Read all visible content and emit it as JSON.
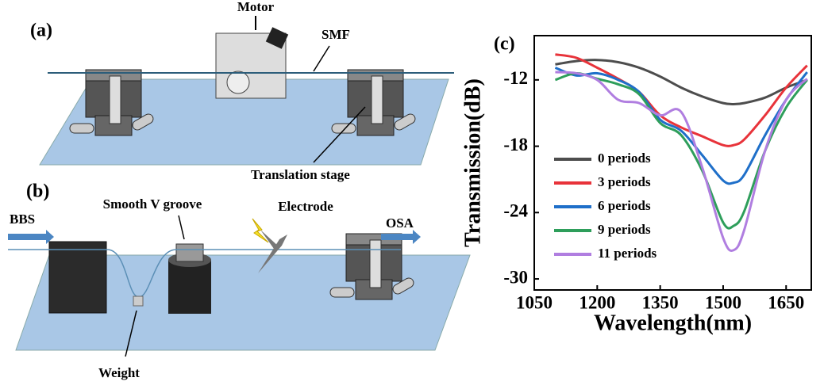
{
  "figure": {
    "a": {
      "label": "(a)",
      "motor": "Motor",
      "fiber": "SMF",
      "stage": "Translation stage"
    },
    "b": {
      "label": "(b)",
      "source": "BBS",
      "groove": "Smooth V groove",
      "electrode": "Electrode",
      "analyzer": "OSA",
      "weight": "Weight"
    },
    "c": {
      "label": "(c)"
    }
  },
  "chart_data": {
    "type": "line",
    "x_label": "Wavelength(nm)",
    "y_label": "Transmission(dB)",
    "x": [
      1100,
      1150,
      1200,
      1250,
      1300,
      1350,
      1400,
      1450,
      1500,
      1525,
      1550,
      1600,
      1650,
      1700
    ],
    "series": [
      {
        "name": "0 periods",
        "color": "#4d4d4d",
        "values": [
          -10.6,
          -10.3,
          -10.2,
          -10.4,
          -10.9,
          -11.7,
          -12.7,
          -13.5,
          -14.1,
          -14.2,
          -14.1,
          -13.6,
          -12.7,
          -12.0
        ]
      },
      {
        "name": "3 periods",
        "color": "#e8333a",
        "values": [
          -9.7,
          -10.0,
          -10.9,
          -11.9,
          -13.1,
          -15.2,
          -16.3,
          -17.1,
          -17.9,
          -17.9,
          -17.4,
          -15.2,
          -12.7,
          -10.7
        ]
      },
      {
        "name": "6 periods",
        "color": "#1f6fc9",
        "values": [
          -10.9,
          -11.6,
          -11.4,
          -12.0,
          -13.1,
          -15.6,
          -16.6,
          -18.8,
          -21.1,
          -21.3,
          -20.6,
          -17.0,
          -13.8,
          -11.3
        ]
      },
      {
        "name": "9 periods",
        "color": "#2e9e5b",
        "values": [
          -12.0,
          -11.4,
          -11.9,
          -12.4,
          -13.3,
          -15.9,
          -17.0,
          -20.2,
          -24.9,
          -25.2,
          -23.9,
          -18.4,
          -14.5,
          -12.0
        ]
      },
      {
        "name": "11 periods",
        "color": "#b07ee0",
        "values": [
          -11.3,
          -11.4,
          -12.0,
          -13.8,
          -14.1,
          -15.2,
          -14.9,
          -19.9,
          -26.3,
          -27.4,
          -25.6,
          -18.4,
          -13.8,
          -11.9
        ]
      }
    ],
    "xlim": [
      1050,
      1710
    ],
    "xticks": [
      1050,
      1200,
      1350,
      1500,
      1650
    ],
    "ylim": [
      -31,
      -8
    ],
    "yticks": [
      -30,
      -24,
      -18,
      -12
    ],
    "grid": false,
    "legend": "lower-left"
  }
}
